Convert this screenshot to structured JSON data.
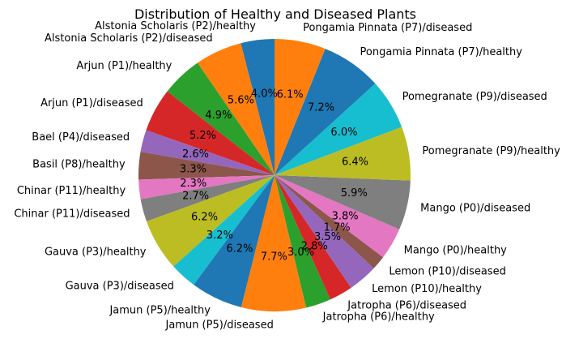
{
  "chart_data": {
    "type": "pie",
    "title": "Distribution of Healthy and Diseased Plants",
    "start_angle_deg": 90,
    "direction": "counterclockwise",
    "slices": [
      {
        "label": "Alstonia Scholaris (P2)/healthy",
        "value": 4.0,
        "pct_label": "4.0%",
        "color": "#1f77b4"
      },
      {
        "label": "Alstonia Scholaris (P2)/diseased",
        "value": 5.6,
        "pct_label": "5.6%",
        "color": "#ff7f0e"
      },
      {
        "label": "Arjun (P1)/healthy",
        "value": 4.9,
        "pct_label": "4.9%",
        "color": "#2ca02c"
      },
      {
        "label": "Arjun (P1)/diseased",
        "value": 5.2,
        "pct_label": "5.2%",
        "color": "#d62728"
      },
      {
        "label": "Bael (P4)/diseased",
        "value": 2.6,
        "pct_label": "2.6%",
        "color": "#9467bd"
      },
      {
        "label": "Basil (P8)/healthy",
        "value": 3.3,
        "pct_label": "3.3%",
        "color": "#8c564b"
      },
      {
        "label": "Chinar (P11)/healthy",
        "value": 2.3,
        "pct_label": "2.3%",
        "color": "#e377c2"
      },
      {
        "label": "Chinar (P11)/diseased",
        "value": 2.7,
        "pct_label": "2.7%",
        "color": "#7f7f7f"
      },
      {
        "label": "Gauva (P3)/healthy",
        "value": 6.2,
        "pct_label": "6.2%",
        "color": "#bcbd22"
      },
      {
        "label": "Gauva (P3)/diseased",
        "value": 3.2,
        "pct_label": "3.2%",
        "color": "#17becf"
      },
      {
        "label": "Jamun (P5)/healthy",
        "value": 6.2,
        "pct_label": "6.2%",
        "color": "#1f77b4"
      },
      {
        "label": "Jamun (P5)/diseased",
        "value": 7.7,
        "pct_label": "7.7%",
        "color": "#ff7f0e"
      },
      {
        "label": "Jatropha (P6)/healthy",
        "value": 3.0,
        "pct_label": "3.0%",
        "color": "#2ca02c"
      },
      {
        "label": "Jatropha (P6)/diseased",
        "value": 2.8,
        "pct_label": "2.8%",
        "color": "#d62728"
      },
      {
        "label": "Lemon (P10)/healthy",
        "value": 3.5,
        "pct_label": "3.5%",
        "color": "#9467bd"
      },
      {
        "label": "Lemon (P10)/diseased",
        "value": 1.7,
        "pct_label": "1.7%",
        "color": "#8c564b"
      },
      {
        "label": "Mango (P0)/healthy",
        "value": 3.8,
        "pct_label": "3.8%",
        "color": "#e377c2"
      },
      {
        "label": "Mango (P0)/diseased",
        "value": 5.9,
        "pct_label": "5.9%",
        "color": "#7f7f7f"
      },
      {
        "label": "Pomegranate (P9)/healthy",
        "value": 6.4,
        "pct_label": "6.4%",
        "color": "#bcbd22"
      },
      {
        "label": "Pomegranate (P9)/diseased",
        "value": 6.0,
        "pct_label": "6.0%",
        "color": "#17becf"
      },
      {
        "label": "Pongamia Pinnata (P7)/healthy",
        "value": 7.2,
        "pct_label": "7.2%",
        "color": "#1f77b4"
      },
      {
        "label": "Pongamia Pinnata (P7)/diseased",
        "value": 6.1,
        "pct_label": "6.1%",
        "color": "#ff7f0e"
      }
    ]
  }
}
